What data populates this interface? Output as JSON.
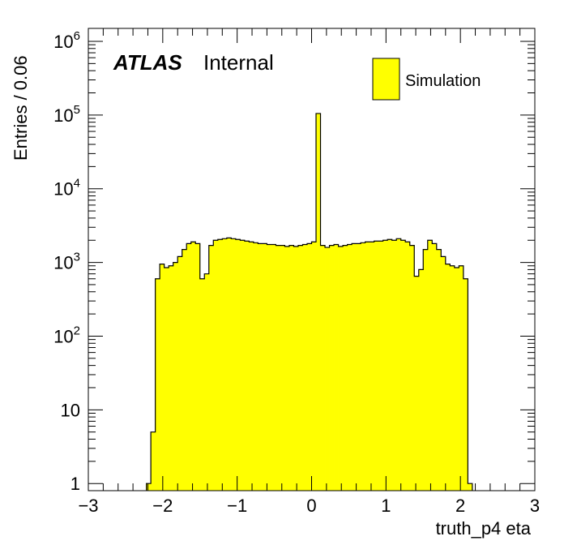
{
  "chart_data": {
    "type": "bar",
    "histogram": true,
    "xlabel": "truth_p4 eta",
    "ylabel": "Entries / 0.06",
    "xlim": [
      -3,
      3
    ],
    "ylim": [
      0.8,
      1500000
    ],
    "log_y": true,
    "x_tick_labels": [
      "−3",
      "−2",
      "−1",
      "0",
      "1",
      "2",
      "3"
    ],
    "x_tick_values": [
      -3,
      -2,
      -1,
      0,
      1,
      2,
      3
    ],
    "y_tick_labels": [
      {
        "value": 1,
        "base": "1",
        "exp": ""
      },
      {
        "value": 10,
        "base": "10",
        "exp": ""
      },
      {
        "value": 100,
        "base": "10",
        "exp": "2"
      },
      {
        "value": 1000,
        "base": "10",
        "exp": "3"
      },
      {
        "value": 10000,
        "base": "10",
        "exp": "4"
      },
      {
        "value": 100000,
        "base": "10",
        "exp": "5"
      },
      {
        "value": 1000000,
        "base": "10",
        "exp": "6"
      }
    ],
    "fill_color": "#ffff00",
    "line_color": "#000000",
    "annotation_bold": "ATLAS",
    "annotation_text": "Internal",
    "legend_position": "top-right",
    "series": [
      {
        "name": "Simulation",
        "bin_width": 0.06,
        "x_start": -2.22,
        "values": [
          1,
          5,
          600,
          950,
          850,
          900,
          1000,
          1200,
          1500,
          1800,
          1900,
          1800,
          600,
          700,
          1700,
          2000,
          2050,
          2100,
          2150,
          2100,
          2050,
          2000,
          1950,
          1900,
          1850,
          1800,
          1800,
          1750,
          1750,
          1700,
          1700,
          1650,
          1700,
          1650,
          1700,
          1750,
          1800,
          1900,
          105000,
          1700,
          1600,
          1700,
          1750,
          1650,
          1700,
          1750,
          1800,
          1800,
          1850,
          1900,
          1900,
          1950,
          1950,
          2000,
          2050,
          2000,
          2100,
          2000,
          1900,
          1700,
          650,
          800,
          1500,
          2000,
          1800,
          1500,
          1200,
          950,
          900,
          850,
          900,
          600,
          1
        ]
      }
    ]
  }
}
